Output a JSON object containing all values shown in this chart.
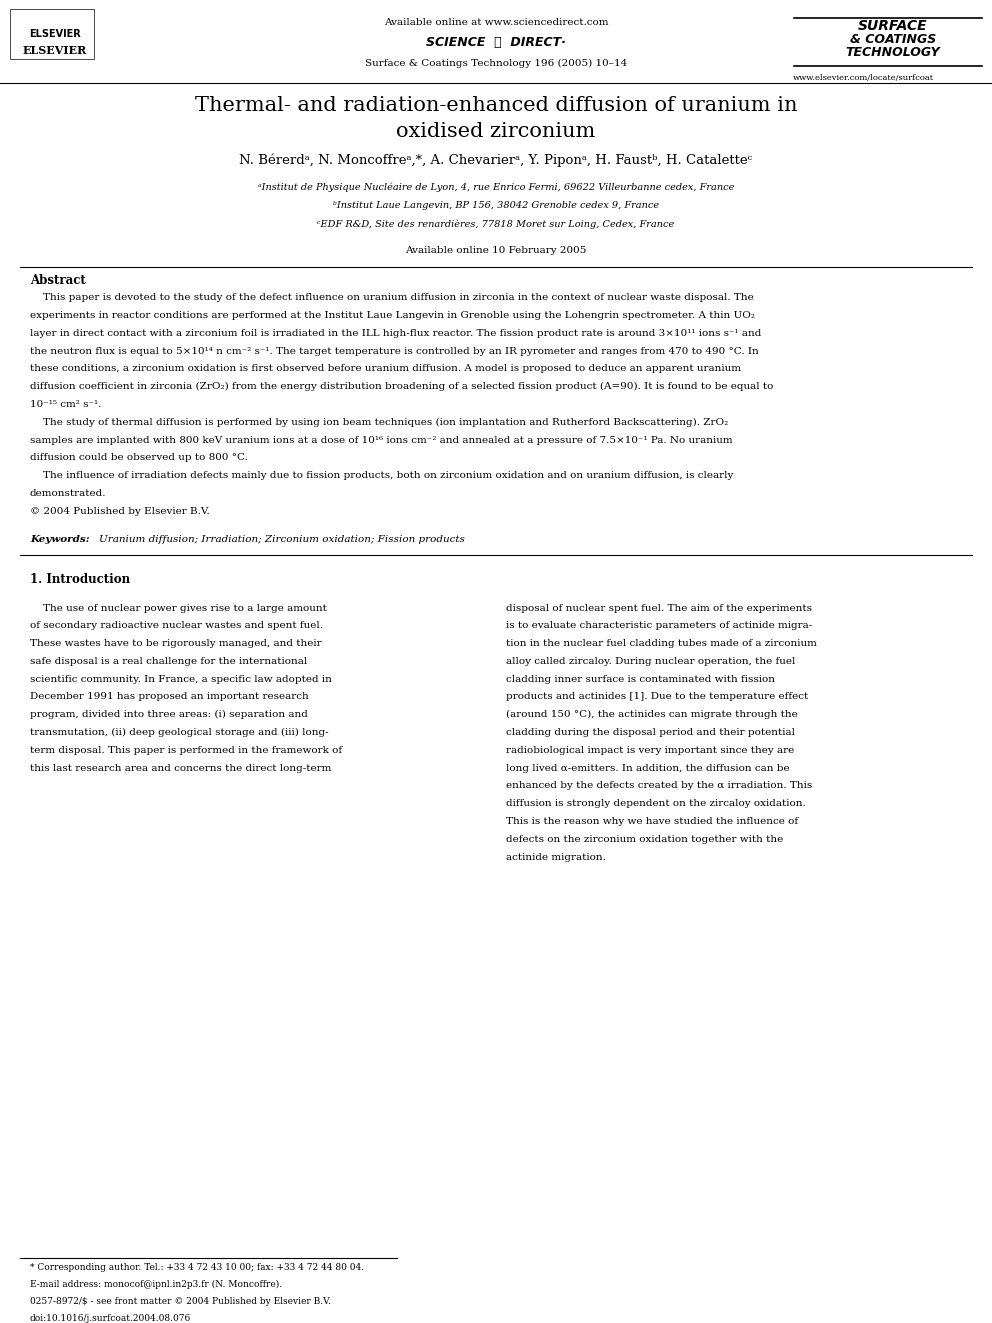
{
  "page_width": 9.92,
  "page_height": 13.23,
  "bg_color": "#ffffff",
  "header": {
    "available_online": "Available online at www.sciencedirect.com",
    "journal_name": "Surface & Coatings Technology 196 (2005) 10–14",
    "website": "www.elsevier.com/locate/surfcoat"
  },
  "title": "Thermal- and radiation-enhanced diffusion of uranium in\noxidised zirconium",
  "authors": "N. Bérerdᵃ, N. Moncoffreᵃ*, A. Chevarierᵃ, Y. Piponᵃ, H. Faustᵇ, H. Cataletteᶜ",
  "affiliations": [
    "ᵃInstitut de Physique Nucléaire de Lyon, 4, rue Enrico Fermi, 69622 Villeurbanne cedex, France",
    "ᵇInstitut Laue Langevin, BP 156, 38042 Grenoble cedex 9, France",
    "ᶜEDF R&D, Site des renardières, 77818 Moret sur Loing, Cedex, France"
  ],
  "available_online_date": "Available online 10 February 2005",
  "abstract_title": "Abstract",
  "abstract_text": "    This paper is devoted to the study of the defect influence on uranium diffusion in zirconia in the context of nuclear waste disposal. The experiments in reactor conditions are performed at the Institut Laue Langevin in Grenoble using the Lohengrin spectrometer. A thin UO₂ layer in direct contact with a zirconium foil is irradiated in the ILL high-flux reactor. The fission product rate is around 3×10¹¹ ions s⁻¹ and the neutron flux is equal to 5×10¹⁴ n cm⁻² s⁻¹. The target temperature is controlled by an IR pyrometer and ranges from 470 to 490 °C. In these conditions, a zirconium oxidation is first observed before uranium diffusion. A model is proposed to deduce an apparent uranium diffusion coefficient in zirconia (ZrO₂) from the energy distribution broadening of a selected fission product (A=90). It is found to be equal to 10⁻¹⁵ cm² s⁻¹.\n    The study of thermal diffusion is performed by using ion beam techniques (ion implantation and Rutherford Backscattering). ZrO₂ samples are implanted with 800 keV uranium ions at a dose of 10¹⁶ ions cm⁻² and annealed at a pressure of 7.5×10⁻¹ Pa. No uranium diffusion could be observed up to 800 °C.\n    The influence of irradiation defects mainly due to fission products, both on zirconium oxidation and on uranium diffusion, is clearly demonstrated.\n© 2004 Published by Elsevier B.V.",
  "keywords_label": "Keywords:",
  "keywords_text": "Uranium diffusion; Irradiation; Zirconium oxidation; Fission products",
  "section1_title": "1. Introduction",
  "section1_col1": "    The use of nuclear power gives rise to a large amount of secondary radioactive nuclear wastes and spent fuel. These wastes have to be rigorously managed, and their safe disposal is a real challenge for the international scientific community. In France, a specific law adopted in December 1991 has proposed an important research program, divided into three areas: (i) separation and transmutation, (ii) deep geological storage and (iii) long-term disposal. This paper is performed in the framework of this last research area and concerns the direct long-term",
  "section1_col2": "disposal of nuclear spent fuel. The aim of the experiments is to evaluate characteristic parameters of actinide migration in the nuclear fuel cladding tubes made of a zirconium alloy called zircaloy. During nuclear operation, the fuel cladding inner surface is contaminated with fission products and actinides [1]. Due to the temperature effect (around 150 °C), the actinides can migrate through the cladding during the disposal period and their potential radiobiological impact is very important since they are long lived α-emitters. In addition, the diffusion can be enhanced by the defects created by the α irradiation. This diffusion is strongly dependent on the zircaloy oxidation. This is the reason why we have studied the influence of defects on the zirconium oxidation together with the actinide migration.",
  "footnote_corresponding": "* Corresponding author. Tel.: +33 4 72 43 10 00; fax: +33 4 72 44 80 04.",
  "footnote_email": "E-mail address: monocof@ipnl.in2p3.fr (N. Moncoffre).",
  "footnote_issn": "0257-8972/$ - see front matter © 2004 Published by Elsevier B.V.",
  "footnote_doi": "doi:10.1016/j.surfcoat.2004.08.076"
}
